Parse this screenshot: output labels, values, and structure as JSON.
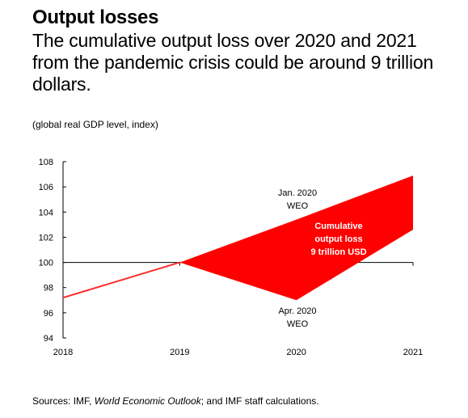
{
  "title": "Output losses",
  "subtitle": "The cumulative output loss over 2020 and 2021 from the pandemic crisis could be around 9 trillion dollars.",
  "units_label": "(global real GDP level, index)",
  "source": {
    "prefix": "Sources: IMF, ",
    "italic": "World Economic Outlook",
    "suffix": "; and IMF staff calculations."
  },
  "colors": {
    "fill": "#ff0000",
    "line": "#ff2a2a",
    "axis": "#000000"
  },
  "chart_data": {
    "type": "area",
    "x": [
      2018,
      2019,
      2020,
      2021
    ],
    "xticks": [
      "2018",
      "2019",
      "2020",
      "2021"
    ],
    "yticks": [
      "94",
      "96",
      "98",
      "100",
      "102",
      "104",
      "106",
      "108"
    ],
    "ylim": [
      94,
      108
    ],
    "baseline": 100,
    "series": [
      {
        "name": "Jan. 2020 WEO",
        "values": [
          97.2,
          100,
          103.4,
          106.9
        ]
      },
      {
        "name": "Apr. 2020 WEO",
        "values": [
          97.2,
          100,
          97.0,
          102.6
        ]
      }
    ],
    "annotations": {
      "jan": [
        "Jan. 2020",
        "WEO"
      ],
      "apr": [
        "Apr. 2020",
        "WEO"
      ],
      "loss": [
        "Cumulative",
        "output loss",
        "9 trillion USD"
      ]
    }
  }
}
